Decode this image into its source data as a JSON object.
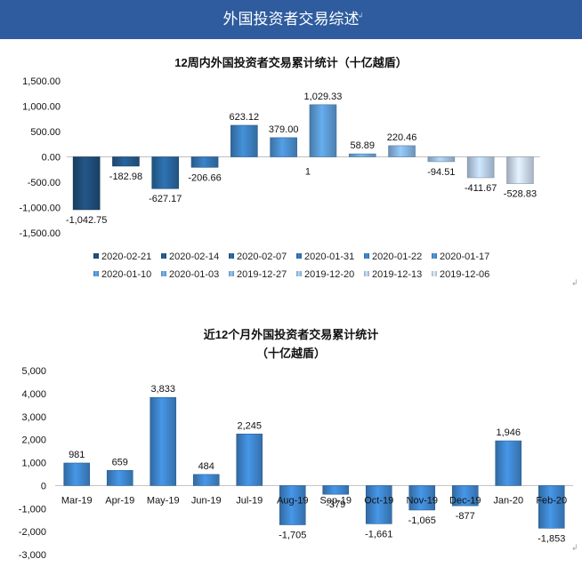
{
  "page_title": "外国投资者交易综述",
  "chart_data": [
    {
      "type": "bar",
      "title": "12周内外国投资者交易累计统计（十亿越盾）",
      "categories": [
        "2020-02-21",
        "2020-02-14",
        "2020-02-07",
        "2020-01-31",
        "2020-01-22",
        "2020-01-17",
        "2020-01-10",
        "2020-01-03",
        "2019-12-27",
        "2019-12-20",
        "2019-12-13",
        "2019-12-06"
      ],
      "values": [
        -1042.75,
        -182.98,
        -627.17,
        -206.66,
        623.12,
        379.0,
        1029.33,
        58.89,
        220.46,
        -94.51,
        -411.67,
        -528.83
      ],
      "data_labels": [
        "-1,042.75",
        "-182.98",
        "-627.17",
        "-206.66",
        "623.12",
        "379.00",
        "1,029.33",
        "58.89",
        "220.46",
        "-94.51",
        "-411.67",
        "-528.83"
      ],
      "extra_label": "1",
      "ylim": [
        -1500,
        1500
      ],
      "yticks": [
        1500,
        1000,
        500,
        0,
        -500,
        -1000,
        -1500
      ],
      "ytick_labels": [
        "1,500.00",
        "1,000.00",
        "500.00",
        "0.00",
        "-500.00",
        "-1,000.00",
        "-1,500.00"
      ],
      "legend": "bottom",
      "grid": false,
      "colors": [
        "#1f4e79",
        "#245a8c",
        "#2a67a0",
        "#3475b3",
        "#3d82c3",
        "#4a8fcf",
        "#5b9bd5",
        "#6fa8dc",
        "#86b5e0",
        "#a0c3e6",
        "#b8cfe9",
        "#ccdaee"
      ]
    },
    {
      "type": "bar",
      "title": "近12个月外国投资者交易累计统计",
      "subtitle": "（十亿越盾）",
      "categories": [
        "Mar-19",
        "Apr-19",
        "May-19",
        "Jun-19",
        "Jul-19",
        "Aug-19",
        "Sep-19",
        "Oct-19",
        "Nov-19",
        "Dec-19",
        "Jan-20",
        "Feb-20"
      ],
      "values": [
        981,
        659,
        3833,
        484,
        2245,
        -1705,
        -379,
        -1661,
        -1065,
        -877,
        1946,
        -1853
      ],
      "data_labels": [
        "981",
        "659",
        "3,833",
        "484",
        "2,245",
        "-1,705",
        "-379",
        "-1,661",
        "-1,065",
        "-877",
        "1,946",
        "-1,853"
      ],
      "ylim": [
        -3000,
        5000
      ],
      "yticks": [
        5000,
        4000,
        3000,
        2000,
        1000,
        0,
        -1000,
        -2000,
        -3000
      ],
      "ytick_labels": [
        "5,000",
        "4,000",
        "3,000",
        "2,000",
        "1,000",
        "0",
        "-1,000",
        "-2,000",
        "-3,000"
      ],
      "grid": false,
      "color": "#3f87cf"
    }
  ]
}
